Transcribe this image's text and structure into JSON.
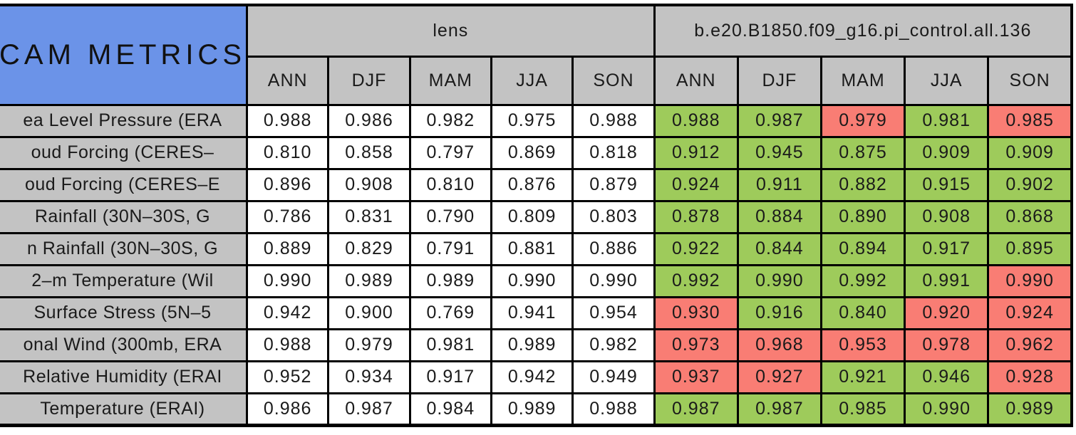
{
  "colors": {
    "good": "#9ecb5b",
    "bad": "#f97d74",
    "header_bg": "#c3c3c3",
    "corner_bg": "#6b93e8"
  },
  "chart_data": {
    "type": "table",
    "title": "CAM METRICS",
    "column_groups": [
      "lens",
      "b.e20.B1850.f09_g16.pi_control.all.136"
    ],
    "columns": [
      "ANN",
      "DJF",
      "MAM",
      "JJA",
      "SON",
      "ANN",
      "DJF",
      "MAM",
      "JJA",
      "SON"
    ],
    "legend_note": "",
    "rows": [
      {
        "label": "ea Level Pressure (ERA",
        "lens": [
          "0.988",
          "0.986",
          "0.982",
          "0.975",
          "0.988"
        ],
        "model": [
          "0.988",
          "0.987",
          "0.979",
          "0.981",
          "0.985"
        ],
        "model_status": [
          "good",
          "good",
          "bad",
          "good",
          "bad"
        ]
      },
      {
        "label": "oud Forcing (CERES–",
        "lens": [
          "0.810",
          "0.858",
          "0.797",
          "0.869",
          "0.818"
        ],
        "model": [
          "0.912",
          "0.945",
          "0.875",
          "0.909",
          "0.909"
        ],
        "model_status": [
          "good",
          "good",
          "good",
          "good",
          "good"
        ]
      },
      {
        "label": "oud Forcing (CERES–E",
        "lens": [
          "0.896",
          "0.908",
          "0.810",
          "0.876",
          "0.879"
        ],
        "model": [
          "0.924",
          "0.911",
          "0.882",
          "0.915",
          "0.902"
        ],
        "model_status": [
          "good",
          "good",
          "good",
          "good",
          "good"
        ]
      },
      {
        "label": "Rainfall (30N–30S, G",
        "lens": [
          "0.786",
          "0.831",
          "0.790",
          "0.809",
          "0.803"
        ],
        "model": [
          "0.878",
          "0.884",
          "0.890",
          "0.908",
          "0.868"
        ],
        "model_status": [
          "good",
          "good",
          "good",
          "good",
          "good"
        ]
      },
      {
        "label": "n Rainfall (30N–30S, G",
        "lens": [
          "0.889",
          "0.829",
          "0.791",
          "0.881",
          "0.886"
        ],
        "model": [
          "0.922",
          "0.844",
          "0.894",
          "0.917",
          "0.895"
        ],
        "model_status": [
          "good",
          "good",
          "good",
          "good",
          "good"
        ]
      },
      {
        "label": "2–m Temperature (Wil",
        "lens": [
          "0.990",
          "0.989",
          "0.989",
          "0.990",
          "0.990"
        ],
        "model": [
          "0.992",
          "0.990",
          "0.992",
          "0.991",
          "0.990"
        ],
        "model_status": [
          "good",
          "good",
          "good",
          "good",
          "bad"
        ]
      },
      {
        "label": "Surface Stress (5N–5",
        "lens": [
          "0.942",
          "0.900",
          "0.769",
          "0.941",
          "0.954"
        ],
        "model": [
          "0.930",
          "0.916",
          "0.840",
          "0.920",
          "0.924"
        ],
        "model_status": [
          "bad",
          "good",
          "good",
          "bad",
          "bad"
        ]
      },
      {
        "label": "onal Wind (300mb, ERA",
        "lens": [
          "0.988",
          "0.979",
          "0.981",
          "0.989",
          "0.982"
        ],
        "model": [
          "0.973",
          "0.968",
          "0.953",
          "0.978",
          "0.962"
        ],
        "model_status": [
          "bad",
          "bad",
          "bad",
          "bad",
          "bad"
        ]
      },
      {
        "label": "Relative Humidity (ERAI",
        "lens": [
          "0.952",
          "0.934",
          "0.917",
          "0.942",
          "0.949"
        ],
        "model": [
          "0.937",
          "0.927",
          "0.921",
          "0.946",
          "0.928"
        ],
        "model_status": [
          "bad",
          "bad",
          "good",
          "good",
          "bad"
        ]
      },
      {
        "label": "Temperature (ERAI)",
        "lens": [
          "0.986",
          "0.987",
          "0.984",
          "0.989",
          "0.988"
        ],
        "model": [
          "0.987",
          "0.987",
          "0.985",
          "0.990",
          "0.989"
        ],
        "model_status": [
          "good",
          "good",
          "good",
          "good",
          "good"
        ]
      }
    ]
  }
}
